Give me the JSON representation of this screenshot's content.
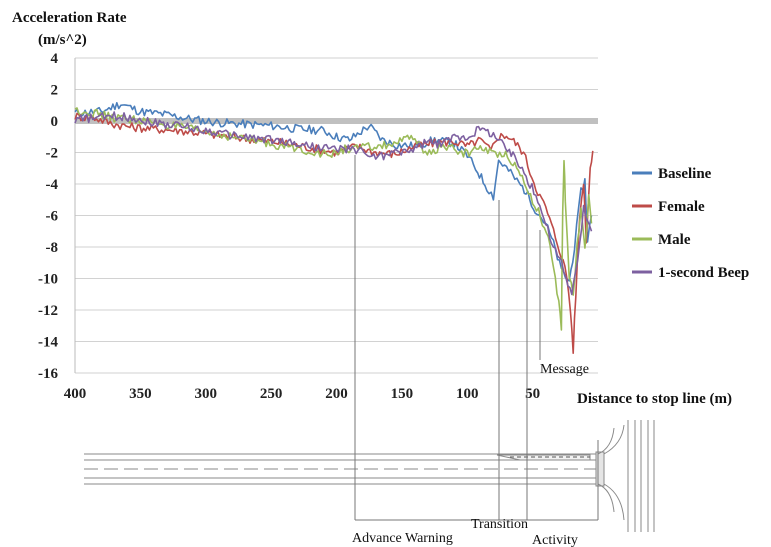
{
  "chart_data": {
    "type": "line",
    "title": "",
    "ylabel_line1": "Acceleration Rate",
    "ylabel_line2": "(m/s^2)",
    "xlabel": "Distance to stop line (m)",
    "x_reversed": true,
    "xlim": [
      400,
      0
    ],
    "ylim": [
      -16,
      4
    ],
    "x_ticks": [
      400,
      350,
      300,
      250,
      200,
      150,
      100,
      50
    ],
    "x_tick_labels": [
      "400",
      "350",
      "300",
      "250",
      "200",
      "150",
      "100",
      "50"
    ],
    "y_ticks": [
      4,
      2,
      0,
      -2,
      -4,
      -6,
      -8,
      -10,
      -12,
      -14,
      -16
    ],
    "y_tick_labels": [
      "4",
      "2",
      "0",
      "-2",
      "-4",
      "-6",
      "-8",
      "-10",
      "-12",
      "-14",
      "-16"
    ],
    "grid": "horizontal",
    "legend_position": "right",
    "series": [
      {
        "name": "Baseline",
        "color": "#4a7ebb",
        "points": [
          [
            400,
            0.5
          ],
          [
            380,
            0.6
          ],
          [
            365,
            1.1
          ],
          [
            350,
            0.6
          ],
          [
            330,
            0.4
          ],
          [
            310,
            0.1
          ],
          [
            290,
            -0.1
          ],
          [
            270,
            -0.2
          ],
          [
            250,
            -0.3
          ],
          [
            230,
            -0.5
          ],
          [
            210,
            -0.6
          ],
          [
            200,
            -1.0
          ],
          [
            190,
            -1.2
          ],
          [
            175,
            -0.3
          ],
          [
            165,
            -1.2
          ],
          [
            155,
            -1.5
          ],
          [
            140,
            -1.6
          ],
          [
            125,
            -1.2
          ],
          [
            110,
            -1.4
          ],
          [
            100,
            -2.2
          ],
          [
            92,
            -3.2
          ],
          [
            85,
            -4.2
          ],
          [
            80,
            -4.8
          ],
          [
            76,
            -2.5
          ],
          [
            70,
            -3.0
          ],
          [
            62,
            -3.8
          ],
          [
            55,
            -4.5
          ],
          [
            48,
            -5.6
          ],
          [
            40,
            -6.5
          ],
          [
            34,
            -7.8
          ],
          [
            28,
            -9.5
          ],
          [
            22,
            -10.2
          ],
          [
            18,
            -8.0
          ],
          [
            13,
            -4.5
          ],
          [
            10,
            -3.8
          ],
          [
            8,
            -7.5
          ],
          [
            5,
            -6.0
          ]
        ]
      },
      {
        "name": "Female",
        "color": "#be4b48",
        "points": [
          [
            400,
            0.3
          ],
          [
            385,
            0.2
          ],
          [
            370,
            -0.2
          ],
          [
            355,
            -0.4
          ],
          [
            340,
            -0.5
          ],
          [
            320,
            -0.6
          ],
          [
            300,
            -0.8
          ],
          [
            280,
            -1.0
          ],
          [
            260,
            -1.2
          ],
          [
            240,
            -1.4
          ],
          [
            220,
            -1.7
          ],
          [
            200,
            -2.0
          ],
          [
            185,
            -1.6
          ],
          [
            170,
            -2.0
          ],
          [
            155,
            -2.1
          ],
          [
            140,
            -1.6
          ],
          [
            125,
            -1.4
          ],
          [
            110,
            -1.3
          ],
          [
            100,
            -1.6
          ],
          [
            90,
            -1.2
          ],
          [
            82,
            -1.9
          ],
          [
            77,
            -1.0
          ],
          [
            70,
            -0.9
          ],
          [
            63,
            -1.4
          ],
          [
            57,
            -2.0
          ],
          [
            52,
            -3.2
          ],
          [
            46,
            -4.5
          ],
          [
            40,
            -5.5
          ],
          [
            34,
            -7.0
          ],
          [
            28,
            -8.5
          ],
          [
            24,
            -9.8
          ],
          [
            21,
            -12.0
          ],
          [
            19,
            -14.5
          ],
          [
            17,
            -11.0
          ],
          [
            14,
            -6.0
          ],
          [
            11,
            -3.8
          ],
          [
            9,
            -7.5
          ],
          [
            6,
            -3.0
          ],
          [
            4,
            -1.9
          ]
        ]
      },
      {
        "name": "Male",
        "color": "#9bbb59",
        "points": [
          [
            400,
            0.7
          ],
          [
            385,
            0.5
          ],
          [
            370,
            0.2
          ],
          [
            355,
            0.1
          ],
          [
            340,
            -0.1
          ],
          [
            320,
            -0.4
          ],
          [
            300,
            -0.7
          ],
          [
            280,
            -1.0
          ],
          [
            260,
            -1.3
          ],
          [
            240,
            -1.6
          ],
          [
            220,
            -1.9
          ],
          [
            205,
            -2.2
          ],
          [
            195,
            -1.8
          ],
          [
            180,
            -1.7
          ],
          [
            165,
            -1.6
          ],
          [
            150,
            -1.3
          ],
          [
            140,
            -1.0
          ],
          [
            132,
            -2.2
          ],
          [
            120,
            -1.6
          ],
          [
            110,
            -1.8
          ],
          [
            100,
            -2.1
          ],
          [
            90,
            -1.6
          ],
          [
            80,
            -2.1
          ],
          [
            72,
            -2.0
          ],
          [
            65,
            -2.6
          ],
          [
            58,
            -3.6
          ],
          [
            50,
            -5.0
          ],
          [
            44,
            -6.0
          ],
          [
            38,
            -7.5
          ],
          [
            34,
            -9.5
          ],
          [
            30,
            -11.5
          ],
          [
            28,
            -13.2
          ],
          [
            27,
            -6.0
          ],
          [
            26,
            -2.3
          ],
          [
            25,
            -5.0
          ],
          [
            22,
            -10.0
          ],
          [
            19,
            -11.0
          ],
          [
            16,
            -8.0
          ],
          [
            13,
            -5.5
          ],
          [
            10,
            -8.3
          ],
          [
            7,
            -4.7
          ],
          [
            5,
            -6.5
          ]
        ]
      },
      {
        "name": "1-second Beep",
        "color": "#7d60a0",
        "points": [
          [
            400,
            0.1
          ],
          [
            385,
            0.2
          ],
          [
            370,
            0.3
          ],
          [
            355,
            0.2
          ],
          [
            340,
            -0.1
          ],
          [
            320,
            -0.3
          ],
          [
            300,
            -0.6
          ],
          [
            280,
            -0.9
          ],
          [
            260,
            -1.1
          ],
          [
            240,
            -1.3
          ],
          [
            220,
            -1.6
          ],
          [
            200,
            -1.8
          ],
          [
            185,
            -1.8
          ],
          [
            170,
            -2.3
          ],
          [
            155,
            -2.0
          ],
          [
            140,
            -1.8
          ],
          [
            130,
            -1.3
          ],
          [
            120,
            -1.5
          ],
          [
            110,
            -1.0
          ],
          [
            100,
            -1.0
          ],
          [
            90,
            -0.5
          ],
          [
            80,
            -0.8
          ],
          [
            72,
            -1.6
          ],
          [
            65,
            -2.2
          ],
          [
            58,
            -3.0
          ],
          [
            52,
            -4.0
          ],
          [
            46,
            -5.0
          ],
          [
            40,
            -6.5
          ],
          [
            34,
            -8.0
          ],
          [
            28,
            -9.0
          ],
          [
            23,
            -10.5
          ],
          [
            20,
            -10.8
          ],
          [
            17,
            -9.5
          ],
          [
            14,
            -8.0
          ],
          [
            11,
            -5.5
          ],
          [
            8,
            -6.5
          ],
          [
            5,
            -7.0
          ]
        ]
      }
    ],
    "baseline_band": {
      "x_from": 400,
      "x_to": 0,
      "y": 0,
      "color": "#c0c0c0"
    }
  },
  "road_diagram": {
    "labels": {
      "advance_warning": "Advance Warning",
      "transition": "Transition",
      "activity": "Activity",
      "message": "Message"
    }
  }
}
